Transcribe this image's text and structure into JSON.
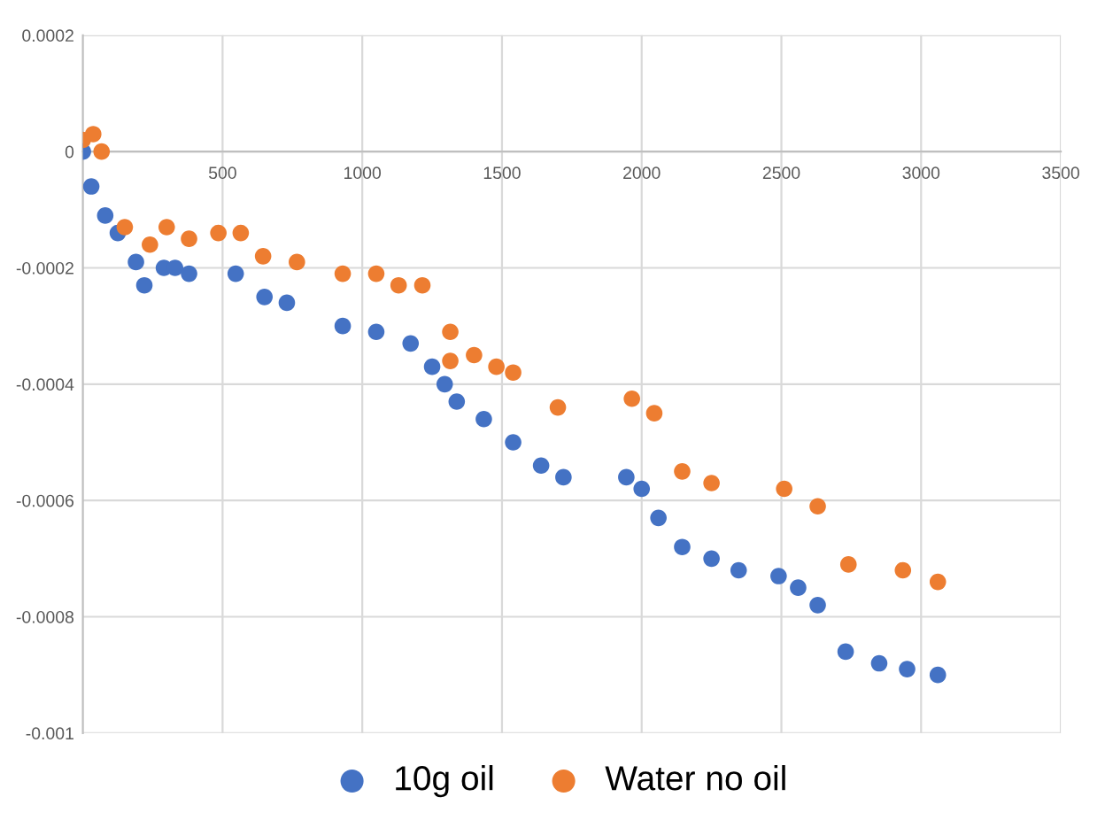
{
  "chart_data": {
    "type": "scatter",
    "legend": "bottom",
    "grid": true,
    "marker": "circle",
    "xlim": [
      0,
      3500
    ],
    "xticks": [
      500,
      1000,
      1500,
      2000,
      2500,
      3000,
      3500
    ],
    "ylim": [
      -0.001,
      0.0002
    ],
    "yticks": [
      -0.001,
      -0.0008,
      -0.0006,
      -0.0004,
      -0.0002,
      0,
      0.0002
    ],
    "series": [
      {
        "name": "10g oil",
        "color": "#4472c4",
        "x": [
          0,
          30,
          80,
          125,
          190,
          220,
          290,
          330,
          380,
          547,
          650,
          730,
          930,
          1050,
          1173,
          1250,
          1295,
          1338,
          1435,
          1540,
          1640,
          1720,
          1945,
          2000,
          2060,
          2145,
          2250,
          2347,
          2490,
          2560,
          2630,
          2730,
          2850,
          2950,
          3060
        ],
        "values": [
          0,
          -6e-05,
          -0.00011,
          -0.00014,
          -0.00019,
          -0.00023,
          -0.0002,
          -0.0002,
          -0.00021,
          -0.00021,
          -0.00025,
          -0.00026,
          -0.0003,
          -0.00031,
          -0.00033,
          -0.00037,
          -0.0004,
          -0.00043,
          -0.00046,
          -0.0005,
          -0.00054,
          -0.00056,
          -0.00056,
          -0.00058,
          -0.00063,
          -0.00068,
          -0.0007,
          -0.00072,
          -0.00073,
          -0.00075,
          -0.00078,
          -0.00086,
          -0.00088,
          -0.00089,
          -0.0009
        ]
      },
      {
        "name": "Water no oil",
        "color": "#ed7d31",
        "x": [
          0,
          37,
          67,
          150,
          240,
          300,
          380,
          485,
          565,
          645,
          766,
          930,
          1050,
          1130,
          1215,
          1315,
          1315,
          1400,
          1480,
          1540,
          1700,
          1965,
          2045,
          2145,
          2250,
          2510,
          2630,
          2740,
          2935,
          3060
        ],
        "values": [
          2e-05,
          3e-05,
          0,
          -0.00013,
          -0.00016,
          -0.00013,
          -0.00015,
          -0.00014,
          -0.00014,
          -0.00018,
          -0.00019,
          -0.00021,
          -0.00021,
          -0.00023,
          -0.00023,
          -0.00031,
          -0.00036,
          -0.00035,
          -0.00037,
          -0.00038,
          -0.00044,
          -0.000425,
          -0.00045,
          -0.00055,
          -0.00057,
          -0.00058,
          -0.00061,
          -0.00071,
          -0.00072,
          -0.00074
        ]
      }
    ]
  }
}
